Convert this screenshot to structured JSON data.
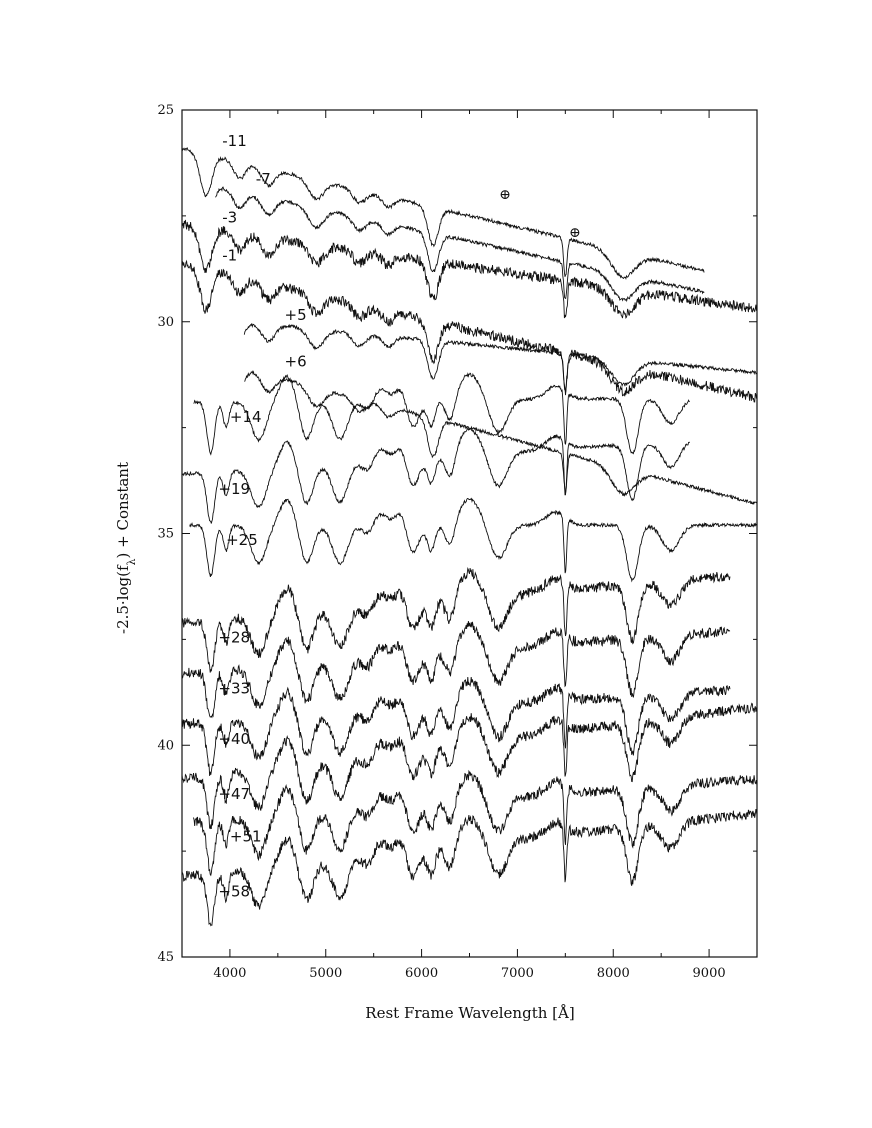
{
  "chart_data": {
    "type": "line",
    "xlabel": "Rest Frame Wavelength [Å]",
    "ylabel": "-2.5·log(f",
    "ylabel_sub": "λ",
    "ylabel_tail": ") + Constant",
    "xlim": [
      3500,
      9500
    ],
    "ylim": [
      45,
      25
    ],
    "y_inverted": true,
    "x_ticks": [
      4000,
      5000,
      6000,
      7000,
      8000,
      9000
    ],
    "x_tick_labels": [
      "4000",
      "5000",
      "6000",
      "7000",
      "8000",
      "9000"
    ],
    "y_ticks": [
      25,
      30,
      35,
      40,
      45
    ],
    "y_tick_labels": [
      "25",
      "30",
      "35",
      "40",
      "45"
    ],
    "grid": false,
    "telluric_marker": "⊕",
    "telluric_x": [
      6870,
      7600
    ],
    "series": [
      {
        "name": "-11",
        "start_x": 3500,
        "end_x": 8950,
        "start_y": 25.9,
        "end_y": 28.8
      },
      {
        "name": "-7",
        "start_x": 3850,
        "end_x": 8950,
        "start_y": 26.8,
        "end_y": 29.3
      },
      {
        "name": "-3",
        "start_x": 3500,
        "end_x": 9500,
        "start_y": 27.7,
        "end_y": 29.7
      },
      {
        "name": "-1",
        "start_x": 3500,
        "end_x": 9500,
        "start_y": 28.6,
        "end_y": 31.8
      },
      {
        "name": "+5",
        "start_x": 4150,
        "end_x": 9500,
        "start_y": 30.0,
        "end_y": 31.2
      },
      {
        "name": "+6",
        "start_x": 4150,
        "end_x": 9500,
        "start_y": 31.1,
        "end_y": 34.3
      },
      {
        "name": "+14",
        "start_x": 3620,
        "end_x": 8800,
        "start_y": 31.9,
        "end_y": 31.8
      },
      {
        "name": "+19",
        "start_x": 3500,
        "end_x": 8800,
        "start_y": 33.6,
        "end_y": 32.8
      },
      {
        "name": "+25",
        "start_x": 3580,
        "end_x": 9500,
        "start_y": 34.8,
        "end_y": 34.8
      },
      {
        "name": "+28",
        "start_x": 3500,
        "end_x": 9220,
        "start_y": 37.1,
        "end_y": 36.0
      },
      {
        "name": "+33",
        "start_x": 3500,
        "end_x": 9220,
        "start_y": 38.3,
        "end_y": 37.3
      },
      {
        "name": "+40",
        "start_x": 3500,
        "end_x": 9220,
        "start_y": 39.5,
        "end_y": 38.7
      },
      {
        "name": "+47",
        "start_x": 3500,
        "end_x": 9500,
        "start_y": 40.8,
        "end_y": 39.1
      },
      {
        "name": "+51",
        "start_x": 3620,
        "end_x": 9500,
        "start_y": 41.8,
        "end_y": 40.8
      },
      {
        "name": "+58",
        "start_x": 3500,
        "end_x": 9500,
        "start_y": 43.1,
        "end_y": 41.6
      }
    ]
  }
}
